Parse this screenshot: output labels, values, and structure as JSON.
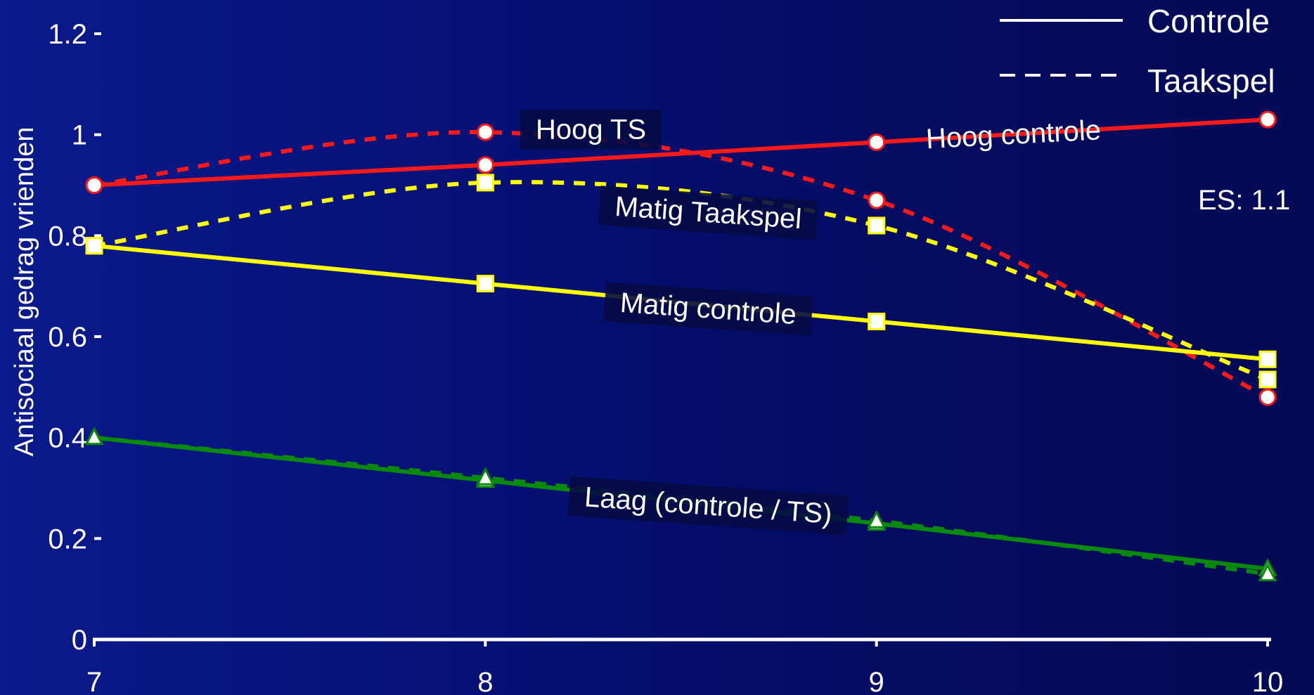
{
  "chart_data": {
    "type": "line",
    "title": "",
    "xlabel": "",
    "ylabel": "Antisociaal gedrag vrienden",
    "x": [
      7,
      8,
      9,
      10
    ],
    "x_tick_labels": [
      "7",
      "8",
      "9",
      "10"
    ],
    "xlim": [
      7,
      10
    ],
    "ylim": [
      0,
      1.2
    ],
    "y_ticks": [
      0,
      0.2,
      0.4,
      0.6,
      0.8,
      1,
      1.2
    ],
    "y_tick_labels": [
      "0",
      "0.2",
      "0.4",
      "0.6",
      "0.8",
      "1",
      "1.2"
    ],
    "grid": false,
    "legend_position": "top-right",
    "legend": [
      {
        "label": "Controle",
        "style": "solid"
      },
      {
        "label": "Taakspel",
        "style": "dashed"
      }
    ],
    "series": [
      {
        "id": "hoog-controle",
        "group": "Hoog",
        "condition": "Controle",
        "style": "solid",
        "color": "#ff1a1a",
        "marker": "circle",
        "values": [
          0.9,
          0.94,
          0.985,
          1.03
        ]
      },
      {
        "id": "hoog-ts",
        "group": "Hoog",
        "condition": "Taakspel",
        "style": "dashed",
        "color": "#ff1a1a",
        "marker": "circle",
        "values": [
          0.9,
          1.005,
          0.87,
          0.48
        ]
      },
      {
        "id": "matig-controle",
        "group": "Matig",
        "condition": "Controle",
        "style": "solid",
        "color": "#ffff00",
        "marker": "square",
        "values": [
          0.78,
          0.705,
          0.63,
          0.555
        ]
      },
      {
        "id": "matig-ts",
        "group": "Matig",
        "condition": "Taakspel",
        "style": "dashed",
        "color": "#ffff00",
        "marker": "square",
        "values": [
          0.78,
          0.905,
          0.82,
          0.515
        ]
      },
      {
        "id": "laag-controle",
        "group": "Laag",
        "condition": "Controle",
        "style": "solid",
        "color": "#0a8a0a",
        "marker": "triangle",
        "values": [
          0.4,
          0.315,
          0.23,
          0.14
        ]
      },
      {
        "id": "laag-ts",
        "group": "Laag",
        "condition": "Taakspel",
        "style": "dashed",
        "color": "#0a8a0a",
        "marker": "triangle",
        "values": [
          0.4,
          0.32,
          0.235,
          0.13
        ]
      }
    ],
    "annotations": [
      {
        "id": "annot-hoog-ts",
        "text": "Hoog TS",
        "x": 8.27,
        "y": 1.01,
        "rotate": 0,
        "boxed": true
      },
      {
        "id": "annot-hoog-controle",
        "text": "Hoog controle",
        "x": 9.35,
        "y": 1.0,
        "rotate": -3,
        "boxed": false
      },
      {
        "id": "annot-matig-ts",
        "text": "Matig Taakspel",
        "x": 8.57,
        "y": 0.845,
        "rotate": 4,
        "boxed": true
      },
      {
        "id": "annot-matig-controle",
        "text": "Matig controle",
        "x": 8.57,
        "y": 0.655,
        "rotate": 4,
        "boxed": true
      },
      {
        "id": "annot-laag",
        "text": "Laag (controle / TS)",
        "x": 8.57,
        "y": 0.265,
        "rotate": 4,
        "boxed": true
      },
      {
        "id": "annot-es",
        "text": "ES: 1.1",
        "x": 9.94,
        "y": 0.87,
        "rotate": 0,
        "boxed": false
      }
    ]
  }
}
